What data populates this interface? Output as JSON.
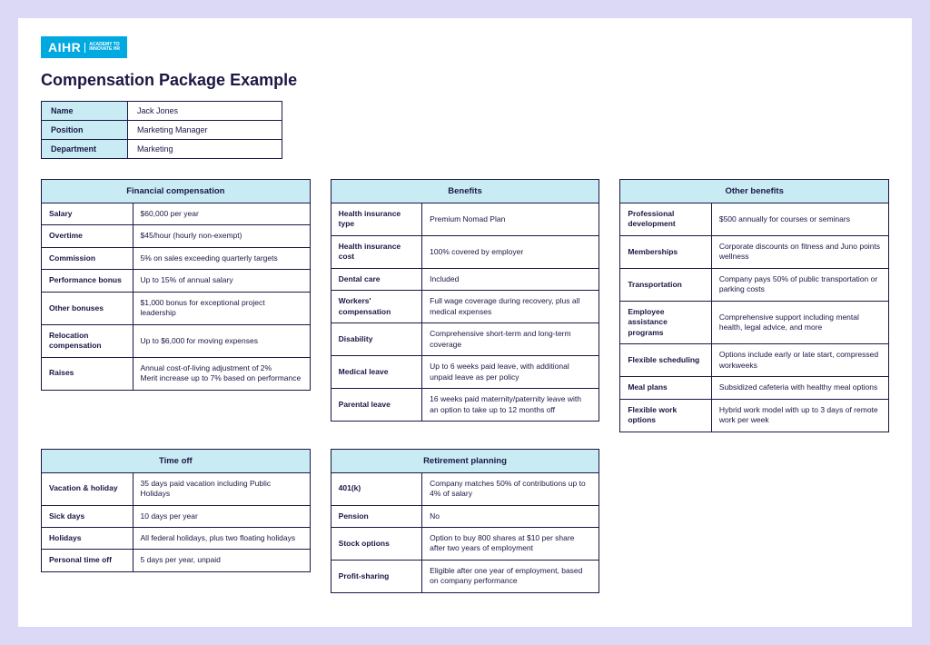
{
  "logo": {
    "main": "AIHR",
    "sub1": "ACADEMY TO",
    "sub2": "INNOVATE HR"
  },
  "title": "Compensation Package Example",
  "info": {
    "rows": [
      {
        "label": "Name",
        "value": "Jack Jones"
      },
      {
        "label": "Position",
        "value": "Marketing Manager"
      },
      {
        "label": "Department",
        "value": "Marketing"
      }
    ]
  },
  "sections": {
    "financial": {
      "header": "Financial compensation",
      "rows": [
        {
          "label": "Salary",
          "value": " $60,000 per year"
        },
        {
          "label": "Overtime",
          "value": "$45/hour (hourly non-exempt)"
        },
        {
          "label": "Commission",
          "value": "5% on sales exceeding quarterly targets"
        },
        {
          "label": "Performance bonus",
          "value": "Up to 15% of annual salary"
        },
        {
          "label": "Other bonuses",
          "value": "$1,000 bonus for exceptional project leadership"
        },
        {
          "label": "Relocation compensation",
          "value": "Up to $6,000 for moving expenses"
        },
        {
          "label": "Raises",
          "value": "Annual cost-of-living adjustment of 2%\nMerit increase up to 7% based on performance"
        }
      ]
    },
    "benefits": {
      "header": "Benefits",
      "rows": [
        {
          "label": "Health insurance type",
          "value": "Premium Nomad Plan"
        },
        {
          "label": "Health insurance cost",
          "value": "100% covered by employer"
        },
        {
          "label": "Dental care",
          "value": " Included"
        },
        {
          "label": "Workers' compensation",
          "value": "Full wage coverage during recovery, plus all medical expenses"
        },
        {
          "label": "Disability",
          "value": "Comprehensive short-term and long-term coverage"
        },
        {
          "label": "Medical leave",
          "value": "Up to 6 weeks paid leave, with additional unpaid leave as per policy"
        },
        {
          "label": "Parental leave",
          "value": "16 weeks paid maternity/paternity leave with an option to take up to 12 months off"
        }
      ]
    },
    "other": {
      "header": "Other benefits",
      "rows": [
        {
          "label": "Professional development",
          "value": "$500 annually for courses or seminars"
        },
        {
          "label": "Memberships",
          "value": "Corporate discounts on fitness and Juno points wellness"
        },
        {
          "label": "Transportation",
          "value": "Company pays 50% of public transportation or parking costs"
        },
        {
          "label": "Employee assistance programs",
          "value": "Comprehensive support including mental health, legal advice, and more"
        },
        {
          "label": "Flexible scheduling",
          "value": "Options include early or late start, compressed workweeks"
        },
        {
          "label": "Meal plans",
          "value": "Subsidized cafeteria with healthy meal options"
        },
        {
          "label": "Flexible work options",
          "value": " Hybrid work model with up to 3 days of remote work per week"
        }
      ]
    },
    "timeoff": {
      "header": "Time off",
      "rows": [
        {
          "label": "Vacation & holiday",
          "value": "35 days paid vacation including Public Holidays"
        },
        {
          "label": "Sick days",
          "value": "10 days per year"
        },
        {
          "label": "Holidays",
          "value": "All federal holidays, plus two floating holidays"
        },
        {
          "label": "Personal time off",
          "value": "5 days per year, unpaid"
        }
      ]
    },
    "retirement": {
      "header": "Retirement planning",
      "rows": [
        {
          "label": "401(k)",
          "value": "Company matches 50% of contributions up to 4% of salary"
        },
        {
          "label": "Pension",
          "value": "No"
        },
        {
          "label": "Stock options",
          "value": "Option to buy 800 shares at $10 per share after  two years of employment"
        },
        {
          "label": "Profit-sharing",
          "value": "Eligible after one year of employment, based on company performance"
        }
      ]
    }
  },
  "colors": {
    "page_bg": "#dcd9f7",
    "card_bg": "#ffffff",
    "header_bg": "#c9ecf4",
    "border": "#1a1744",
    "text": "#1a1744",
    "logo_bg": "#00a9e0"
  }
}
